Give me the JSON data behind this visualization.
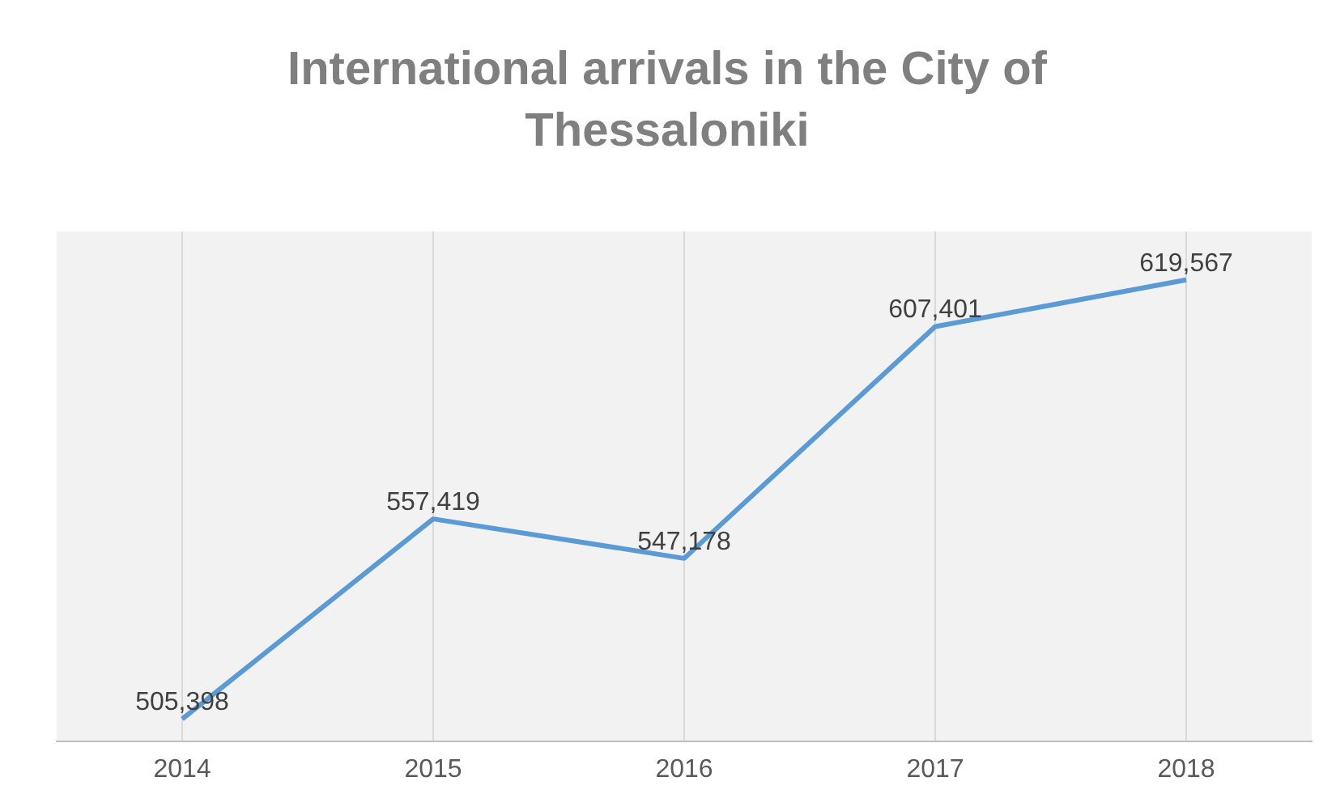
{
  "chart_data": {
    "type": "line",
    "title": "International arrivals in the City of Thessaloniki",
    "categories": [
      "2014",
      "2015",
      "2016",
      "2017",
      "2018"
    ],
    "series": [
      {
        "color": "#5b9bd5",
        "values": [
          505398,
          557419,
          547178,
          607401,
          619567
        ],
        "value_labels": [
          "505,398",
          "557,419",
          "547,178",
          "607,401",
          "619,567"
        ]
      }
    ],
    "grid": "x",
    "legend": false,
    "marker": "none",
    "line_style": "solid",
    "tick_labels": "x"
  }
}
